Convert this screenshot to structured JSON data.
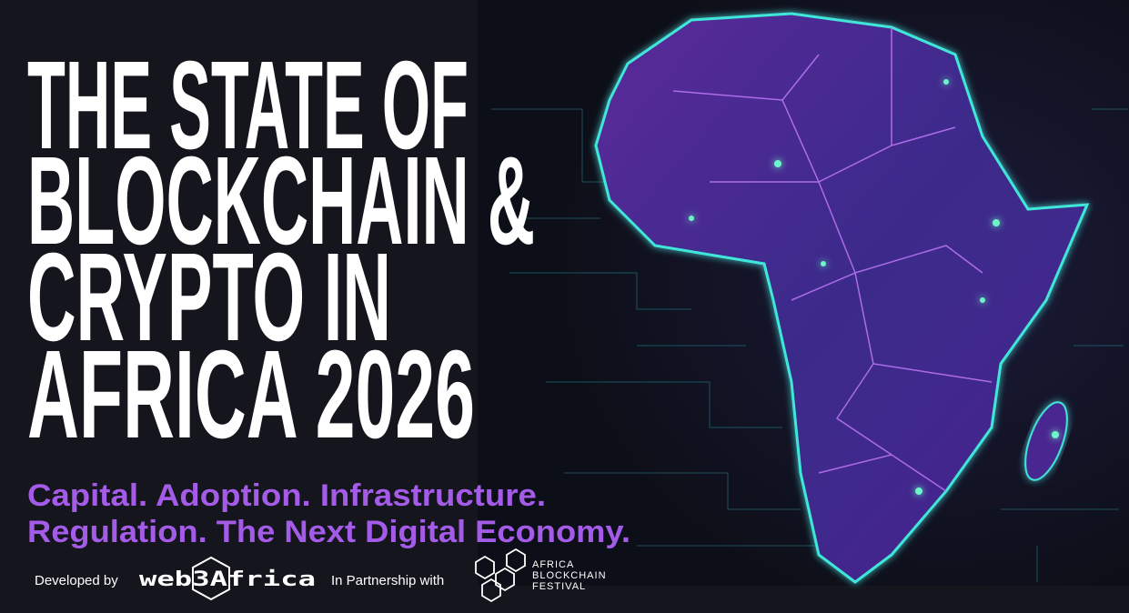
{
  "title": {
    "lines": [
      "THE STATE OF",
      "BLOCKCHAIN &",
      "CRYPTO IN",
      "AFRICA 2026"
    ]
  },
  "subtitle": {
    "lines": [
      "Capital. Adoption. Infrastructure.",
      "Regulation. The Next Digital Economy."
    ]
  },
  "footer": {
    "developed_by": "Developed by",
    "developer_logo": "web3Africa",
    "partnership": "In Partnership with",
    "partner_logo": [
      "AFRICA",
      "BLOCKCHAIN",
      "FESTIVAL"
    ]
  }
}
